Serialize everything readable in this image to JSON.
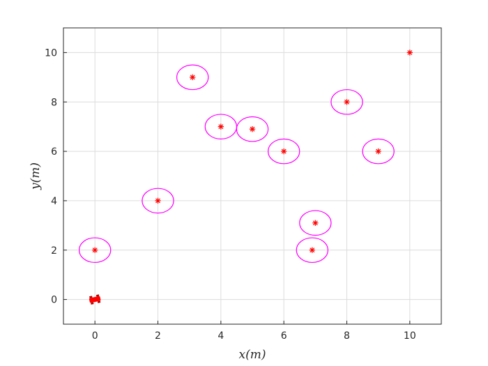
{
  "chart_data": {
    "type": "scatter",
    "title": "",
    "xlabel": "x(m)",
    "ylabel": "y(m)",
    "xlim": [
      -1,
      11
    ],
    "ylim": [
      -1,
      11
    ],
    "xticks": [
      0,
      2,
      4,
      6,
      8,
      10
    ],
    "yticks": [
      0,
      2,
      4,
      6,
      8,
      10
    ],
    "grid": true,
    "colors": {
      "obstacle": "#ff00ff",
      "marker": "#ff0000",
      "vehicle": "#ff0000"
    },
    "obstacles": [
      {
        "x": 0,
        "y": 2,
        "r": 0.5
      },
      {
        "x": 2,
        "y": 4,
        "r": 0.5
      },
      {
        "x": 3.1,
        "y": 9,
        "r": 0.5
      },
      {
        "x": 4,
        "y": 7,
        "r": 0.5
      },
      {
        "x": 5,
        "y": 6.9,
        "r": 0.5
      },
      {
        "x": 6,
        "y": 6,
        "r": 0.5
      },
      {
        "x": 8,
        "y": 8,
        "r": 0.5
      },
      {
        "x": 9,
        "y": 6,
        "r": 0.5
      },
      {
        "x": 7,
        "y": 3.1,
        "r": 0.5
      },
      {
        "x": 6.9,
        "y": 2,
        "r": 0.5
      }
    ],
    "goal": {
      "x": 10,
      "y": 10
    },
    "vehicle": {
      "x": 0,
      "y": 0
    }
  }
}
